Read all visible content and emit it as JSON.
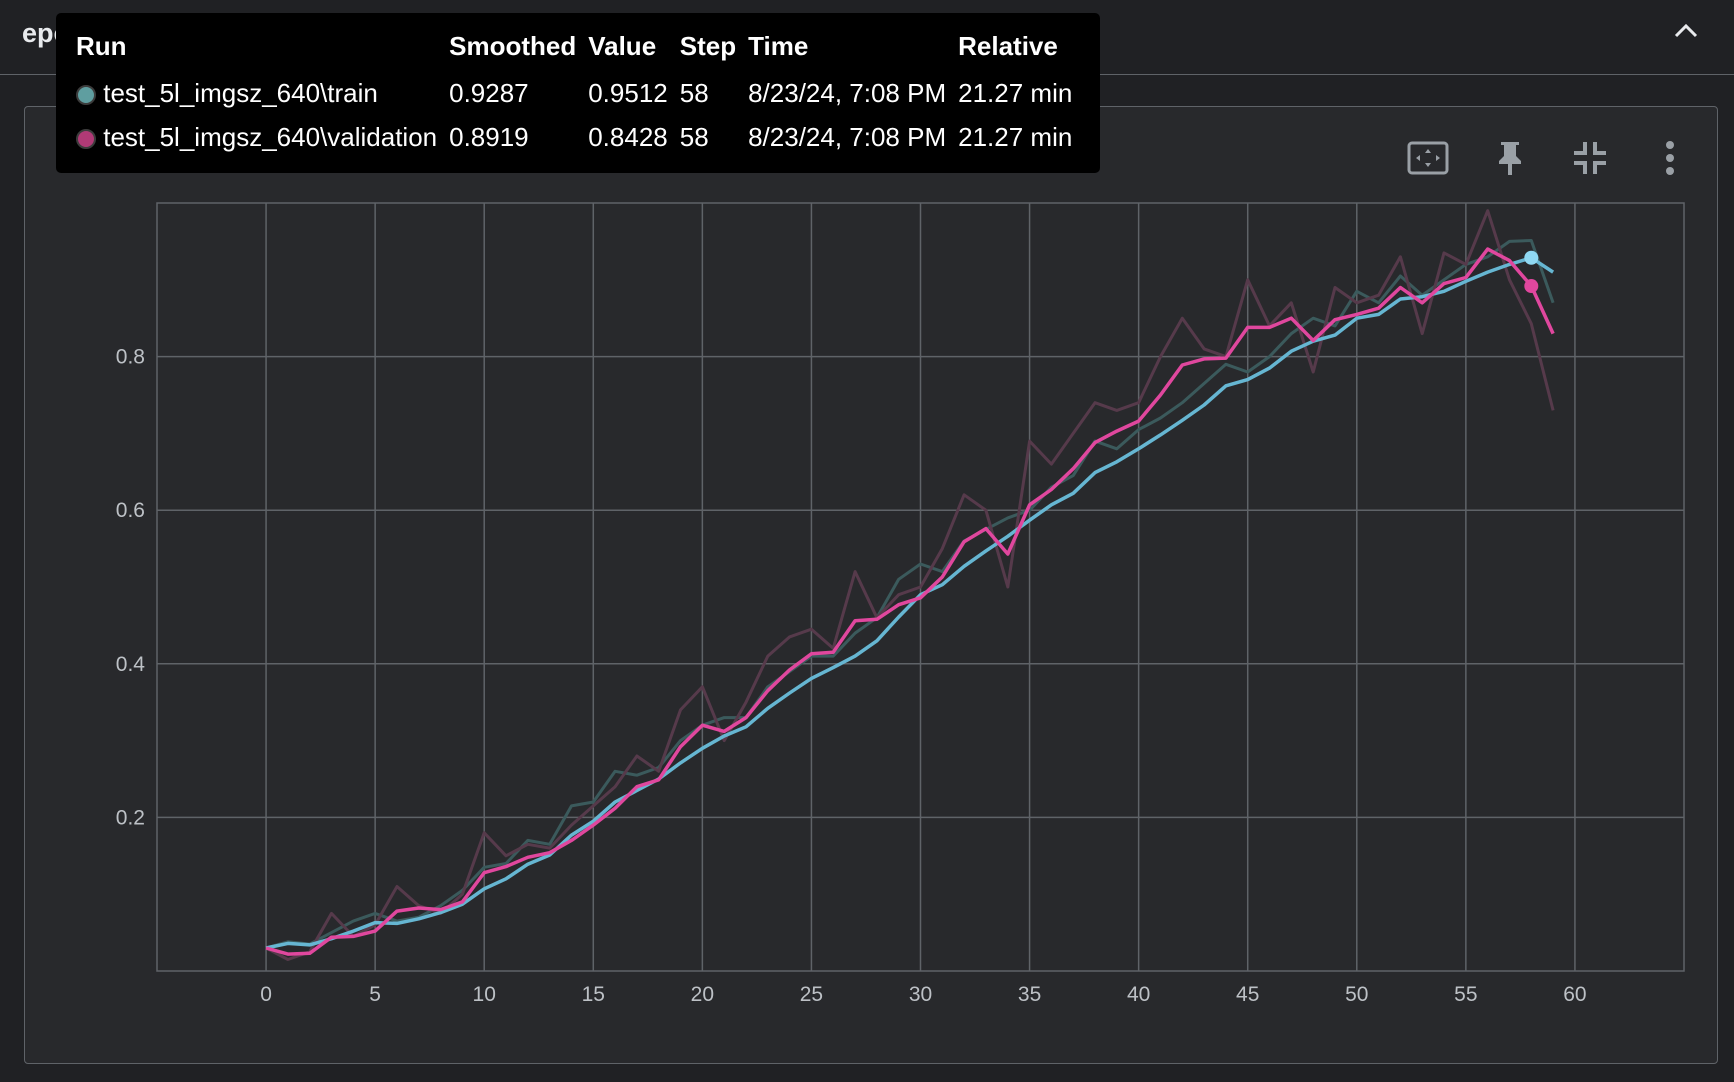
{
  "header": {
    "title": "epoch_accuracy"
  },
  "card": {
    "title": "epoch_accuracy"
  },
  "toolbar": {
    "icons": [
      "fit-domain-icon",
      "pin-icon",
      "collapse-chart-icon",
      "more-icon"
    ]
  },
  "tooltip": {
    "headers": [
      "Run",
      "Smoothed",
      "Value",
      "Step",
      "Time",
      "Relative"
    ],
    "rows": [
      {
        "run": "test_5l_imgsz_640\\train",
        "smoothed": "0.9287",
        "value": "0.9512",
        "step": "58",
        "time": "8/23/24, 7:08 PM",
        "relative": "21.27 min",
        "color": "#5f9ea0"
      },
      {
        "run": "test_5l_imgsz_640\\validation",
        "smoothed": "0.8919",
        "value": "0.8428",
        "step": "58",
        "time": "8/23/24, 7:08 PM",
        "relative": "21.27 min",
        "color": "#b03a76"
      }
    ]
  },
  "chart_data": {
    "type": "line",
    "title": "epoch_accuracy",
    "xlabel": "",
    "ylabel": "",
    "xlim": [
      -5,
      65
    ],
    "ylim": [
      0,
      1
    ],
    "x_ticks": [
      "0",
      "5",
      "10",
      "15",
      "20",
      "25",
      "30",
      "35",
      "40",
      "45",
      "50",
      "55",
      "60"
    ],
    "x_tick_values": [
      0,
      5,
      10,
      15,
      20,
      25,
      30,
      35,
      40,
      45,
      50,
      55,
      60
    ],
    "y_ticks": [
      "0.2",
      "0.4",
      "0.6",
      "0.8"
    ],
    "y_tick_values": [
      0.2,
      0.4,
      0.6,
      0.8
    ],
    "grid": true,
    "highlight_step": 58,
    "series": [
      {
        "name": "test_5l_imgsz_640\\train (raw)",
        "kind": "raw",
        "color": "#3b5a5c",
        "values": [
          0.03,
          0.038,
          0.035,
          0.05,
          0.065,
          0.075,
          0.065,
          0.07,
          0.085,
          0.105,
          0.135,
          0.14,
          0.17,
          0.165,
          0.215,
          0.22,
          0.26,
          0.255,
          0.265,
          0.3,
          0.32,
          0.33,
          0.33,
          0.37,
          0.39,
          0.41,
          0.41,
          0.44,
          0.46,
          0.51,
          0.53,
          0.52,
          0.56,
          0.575,
          0.59,
          0.6,
          0.63,
          0.645,
          0.69,
          0.68,
          0.705,
          0.72,
          0.74,
          0.765,
          0.79,
          0.78,
          0.8,
          0.83,
          0.85,
          0.84,
          0.885,
          0.87,
          0.905,
          0.88,
          0.9,
          0.92,
          0.93,
          0.95,
          0.9512,
          0.87
        ]
      },
      {
        "name": "test_5l_imgsz_640\\validation (raw)",
        "kind": "raw",
        "color": "#563a4b",
        "values": [
          0.03,
          0.015,
          0.025,
          0.075,
          0.045,
          0.06,
          0.11,
          0.085,
          0.075,
          0.1,
          0.18,
          0.15,
          0.165,
          0.16,
          0.19,
          0.215,
          0.24,
          0.28,
          0.26,
          0.34,
          0.37,
          0.3,
          0.35,
          0.41,
          0.435,
          0.445,
          0.42,
          0.52,
          0.46,
          0.49,
          0.5,
          0.55,
          0.62,
          0.6,
          0.5,
          0.69,
          0.66,
          0.7,
          0.74,
          0.73,
          0.74,
          0.8,
          0.85,
          0.81,
          0.8,
          0.9,
          0.84,
          0.87,
          0.78,
          0.89,
          0.87,
          0.88,
          0.93,
          0.83,
          0.935,
          0.92,
          0.99,
          0.9,
          0.8428,
          0.73
        ]
      },
      {
        "name": "test_5l_imgsz_640\\train",
        "kind": "smoothed",
        "color": "#66b6d2",
        "values": [
          0.03,
          0.036,
          0.034,
          0.042,
          0.052,
          0.063,
          0.062,
          0.068,
          0.076,
          0.087,
          0.107,
          0.12,
          0.139,
          0.151,
          0.177,
          0.195,
          0.22,
          0.235,
          0.25,
          0.271,
          0.29,
          0.306,
          0.318,
          0.342,
          0.362,
          0.381,
          0.395,
          0.41,
          0.43,
          0.461,
          0.49,
          0.503,
          0.527,
          0.547,
          0.566,
          0.587,
          0.607,
          0.622,
          0.649,
          0.663,
          0.68,
          0.698,
          0.717,
          0.737,
          0.762,
          0.77,
          0.785,
          0.807,
          0.82,
          0.828,
          0.85,
          0.855,
          0.875,
          0.878,
          0.885,
          0.898,
          0.91,
          0.92,
          0.9287,
          0.91
        ]
      },
      {
        "name": "test_5l_imgsz_640\\validation",
        "kind": "smoothed",
        "color": "#e0479e",
        "values": [
          0.03,
          0.022,
          0.023,
          0.044,
          0.045,
          0.052,
          0.078,
          0.082,
          0.08,
          0.09,
          0.128,
          0.136,
          0.148,
          0.154,
          0.17,
          0.19,
          0.212,
          0.24,
          0.249,
          0.292,
          0.32,
          0.312,
          0.33,
          0.365,
          0.392,
          0.413,
          0.415,
          0.456,
          0.458,
          0.477,
          0.486,
          0.513,
          0.559,
          0.576,
          0.543,
          0.607,
          0.627,
          0.654,
          0.688,
          0.703,
          0.716,
          0.75,
          0.789,
          0.797,
          0.798,
          0.838,
          0.838,
          0.85,
          0.821,
          0.848,
          0.855,
          0.863,
          0.89,
          0.87,
          0.895,
          0.903,
          0.94,
          0.925,
          0.8919,
          0.83
        ]
      }
    ]
  }
}
